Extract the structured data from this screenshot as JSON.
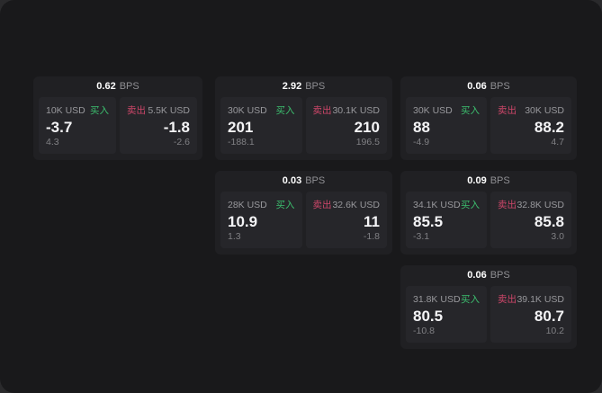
{
  "labels": {
    "bps_unit": "BPS",
    "buy": "买入",
    "sell": "卖出"
  },
  "colors": {
    "buy_green": "#3cbe6e",
    "sell_red": "#cd4669",
    "panel_bg": "#19191b",
    "card_bg": "#202023",
    "tile_bg": "#26262a"
  },
  "cards": [
    {
      "slot": "a1",
      "bps": "0.62",
      "buy": {
        "size": "10K USD",
        "price": "-3.7",
        "change": "4.3"
      },
      "sell": {
        "size": "5.5K USD",
        "price": "-1.8",
        "change": "-2.6"
      }
    },
    {
      "slot": "b1",
      "bps": "2.92",
      "buy": {
        "size": "30K USD",
        "price": "201",
        "change": "-188.1"
      },
      "sell": {
        "size": "30.1K USD",
        "price": "210",
        "change": "196.5"
      }
    },
    {
      "slot": "c1",
      "bps": "0.06",
      "buy": {
        "size": "30K USD",
        "price": "88",
        "change": "-4.9"
      },
      "sell": {
        "size": "30K USD",
        "price": "88.2",
        "change": "4.7"
      }
    },
    {
      "slot": "b2",
      "bps": "0.03",
      "buy": {
        "size": "28K USD",
        "price": "10.9",
        "change": "1.3"
      },
      "sell": {
        "size": "32.6K USD",
        "price": "11",
        "change": "-1.8"
      }
    },
    {
      "slot": "c2",
      "bps": "0.09",
      "buy": {
        "size": "34.1K USD",
        "price": "85.5",
        "change": "-3.1"
      },
      "sell": {
        "size": "32.8K USD",
        "price": "85.8",
        "change": "3.0"
      }
    },
    {
      "slot": "c3",
      "bps": "0.06",
      "buy": {
        "size": "31.8K USD",
        "price": "80.5",
        "change": "-10.8"
      },
      "sell": {
        "size": "39.1K USD",
        "price": "80.7",
        "change": "10.2"
      }
    }
  ]
}
